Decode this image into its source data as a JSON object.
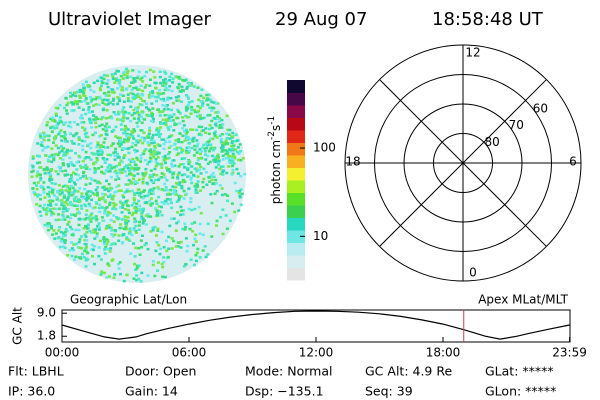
{
  "header": {
    "instrument": "Ultraviolet Imager",
    "date": "29 Aug 07",
    "time": "18:58:48 UT"
  },
  "colorbar": {
    "label": "photon cm",
    "exp1": "-2",
    "unit2": "s",
    "exp2": "-1",
    "log": true,
    "clim": [
      3.2,
      590
    ],
    "ticks": [
      10,
      100
    ],
    "colors": [
      "#e4e4e4",
      "#d6eef0",
      "#b8ecf0",
      "#6ee6e6",
      "#26d8c0",
      "#3cd050",
      "#58e028",
      "#a8f020",
      "#f4f030",
      "#f8b020",
      "#f07818",
      "#e02818",
      "#b80818",
      "#880848",
      "#480848",
      "#100830"
    ]
  },
  "polar": {
    "rlim": [
      90,
      50
    ],
    "rings": [
      80,
      70,
      60,
      50
    ],
    "ring_labels": [
      80,
      70,
      60
    ],
    "mlt_ticks": [
      12,
      6,
      0,
      18
    ],
    "mlt_grid": [
      0,
      3,
      6,
      9,
      12,
      15,
      18,
      21
    ]
  },
  "image": {
    "colors": [
      "#48e8c8",
      "#40e070",
      "#6ae8f0",
      "#30d8b0",
      "#78e848"
    ],
    "faint_color": "#d8eef0"
  },
  "altitude_plot": {
    "type": "line",
    "ylabel": "GC Alt",
    "title_left": "Geographic Lat/Lon",
    "title_right": "Apex MLat/MLT",
    "x": [
      0,
      1,
      2,
      2.7,
      3.5,
      4,
      5,
      6,
      7,
      8,
      9,
      10,
      11,
      12,
      13,
      14,
      15,
      16,
      17,
      18,
      19,
      20,
      20.7,
      21.5,
      22,
      23,
      23.98
    ],
    "values": [
      5.3,
      3.4,
      1.6,
      0.9,
      1.6,
      2.6,
      4.2,
      5.6,
      6.8,
      7.8,
      8.6,
      9.2,
      9.6,
      9.7,
      9.6,
      9.3,
      8.8,
      8.0,
      6.9,
      5.6,
      3.8,
      1.8,
      0.9,
      1.8,
      2.6,
      4.0,
      5.3
    ],
    "xlim": [
      0,
      24
    ],
    "ylim": [
      0,
      10
    ],
    "yticks": [
      {
        "value": 9,
        "label": "9.0"
      },
      {
        "value": 1.8,
        "label": "1.8"
      }
    ],
    "xticks": [
      {
        "value": 0,
        "label": "00:00"
      },
      {
        "value": 6,
        "label": "06:00"
      },
      {
        "value": 12,
        "label": "12:00"
      },
      {
        "value": 18,
        "label": "18:00"
      },
      {
        "value": 23.98,
        "label": "23:59"
      }
    ],
    "current_time": 18.98,
    "current_color": "#c84050"
  },
  "footer": {
    "columns": [
      [
        "Flt: LBHL",
        "IP: 36.0"
      ],
      [
        "Door: Open",
        "Gain: 14"
      ],
      [
        "Mode: Normal",
        "Dsp: −135.1"
      ],
      [
        "GC Alt: 4.9 Re",
        "Seq: 39"
      ],
      [
        "GLat: *****",
        "GLon: *****"
      ]
    ]
  }
}
